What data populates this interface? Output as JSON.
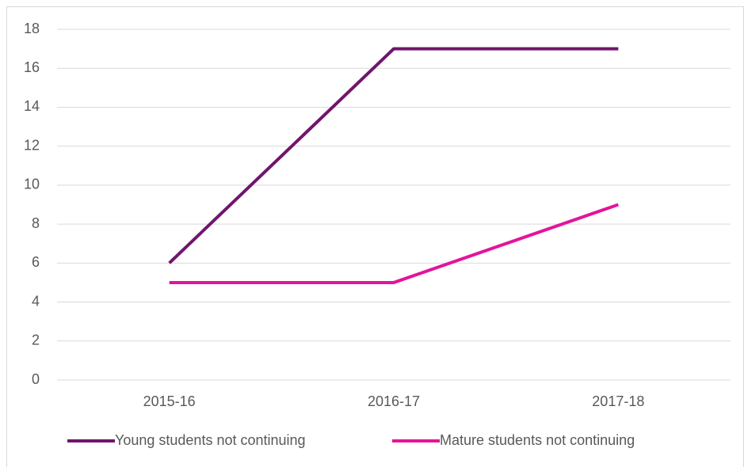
{
  "chart_data": {
    "type": "line",
    "categories": [
      "2015-16",
      "2016-17",
      "2017-18"
    ],
    "series": [
      {
        "name": "Young students not continuing",
        "color": "#70156e",
        "values": [
          6,
          17,
          17
        ]
      },
      {
        "name": "Mature students not continuing",
        "color": "#e3149b",
        "values": [
          5,
          5,
          9
        ]
      }
    ],
    "ylim": [
      0,
      18
    ],
    "yticks": [
      0,
      2,
      4,
      6,
      8,
      10,
      12,
      14,
      16,
      18
    ],
    "grid": true,
    "legend": "bottom"
  }
}
